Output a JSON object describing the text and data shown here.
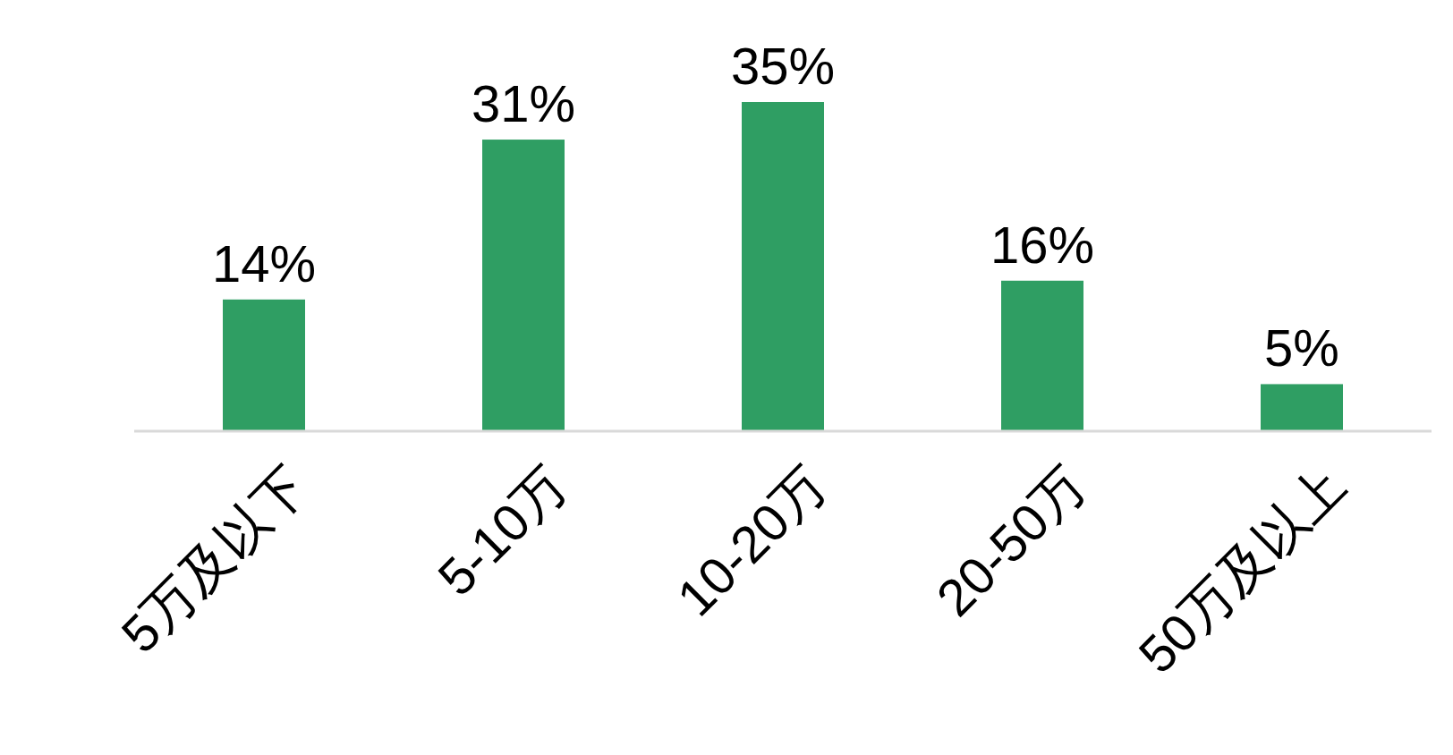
{
  "chart_data": {
    "type": "bar",
    "categories": [
      "5万及以下",
      "5-10万",
      "10-20万",
      "20-50万",
      "50万及以上"
    ],
    "values": [
      14,
      31,
      35,
      16,
      5
    ],
    "value_labels": [
      "14%",
      "31%",
      "35%",
      "16%",
      "5%"
    ],
    "color": "#2f9e63"
  }
}
